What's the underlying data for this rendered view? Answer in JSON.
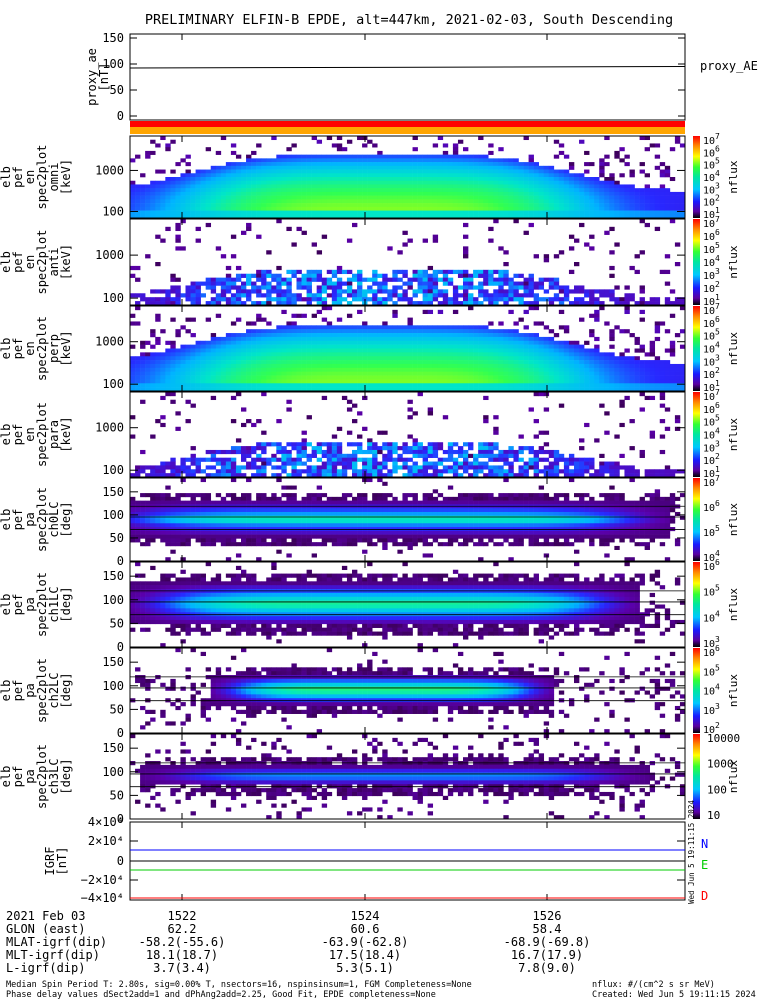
{
  "title": "PRELIMINARY ELFIN-B EPDE, alt=447km, 2021-02-03, South Descending",
  "chart_data": [
    {
      "type": "line",
      "panel": "proxy_ae",
      "ylabel_lines": [
        "proxy_ae",
        "[nT]"
      ],
      "yticks": [
        "150",
        "100",
        "50",
        "0"
      ],
      "ylim": [
        0,
        150
      ],
      "legend": "proxy_AE",
      "series": [
        {
          "name": "proxy_AE",
          "x_min": [
            0,
            5.75
          ],
          "values": [
            94,
            94.5
          ]
        }
      ],
      "colorbar": "orange/red bar"
    },
    {
      "type": "heatmap",
      "panel": "elb_pef_en_spec2plot_omni",
      "ylabel_lines": [
        "elb",
        "pef",
        "en",
        "spec2plot",
        "omni",
        "[keV]"
      ],
      "yticks": [
        "1000",
        "100"
      ],
      "scale": "log",
      "colorbar_label": "nflux",
      "colorbar_ticks": [
        "10^7",
        "10^6",
        "10^5",
        "10^4",
        "10^3",
        "10^2",
        "10^1"
      ],
      "intensity_peak": "green",
      "energy_range_keV": [
        60,
        7000
      ]
    },
    {
      "type": "heatmap",
      "panel": "elb_pef_en_spec2plot_anti",
      "ylabel_lines": [
        "elb",
        "pef",
        "en",
        "spec2plot",
        "anti",
        "[keV]"
      ],
      "yticks": [
        "1000",
        "100"
      ],
      "colorbar_label": "nflux",
      "colorbar_ticks": [
        "10^7",
        "10^6",
        "10^5",
        "10^4",
        "10^3",
        "10^2",
        "10^1"
      ]
    },
    {
      "type": "heatmap",
      "panel": "elb_pef_en_spec2plot_perp",
      "ylabel_lines": [
        "elb",
        "pef",
        "en",
        "spec2plot",
        "perp",
        "[keV]"
      ],
      "yticks": [
        "1000",
        "100"
      ],
      "colorbar_label": "nflux",
      "colorbar_ticks": [
        "10^7",
        "10^6",
        "10^5",
        "10^4",
        "10^3",
        "10^2",
        "10^1"
      ]
    },
    {
      "type": "heatmap",
      "panel": "elb_pef_en_spec2plot_para",
      "ylabel_lines": [
        "elb",
        "pef",
        "en",
        "spec2plot",
        "para",
        "[keV]"
      ],
      "yticks": [
        "1000",
        "100"
      ],
      "colorbar_label": "nflux",
      "colorbar_ticks": [
        "10^7",
        "10^6",
        "10^5",
        "10^4",
        "10^3",
        "10^2",
        "10^1"
      ]
    },
    {
      "type": "heatmap",
      "panel": "elb_pef_pa_spec2plot_ch0LC",
      "ylabel_lines": [
        "elb",
        "pef",
        "pa",
        "spec2plot",
        "ch0LC",
        "[deg]"
      ],
      "yticks": [
        "150",
        "100",
        "50",
        "0"
      ],
      "ylim": [
        0,
        180
      ],
      "colorbar_label": "nflux",
      "colorbar_ticks": [
        "10^7",
        "10^6",
        "10^5",
        "10^4"
      ]
    },
    {
      "type": "heatmap",
      "panel": "elb_pef_pa_spec2plot_ch1LC",
      "ylabel_lines": [
        "elb",
        "pef",
        "pa",
        "spec2plot",
        "ch1LC",
        "[deg]"
      ],
      "yticks": [
        "150",
        "100",
        "50",
        "0"
      ],
      "ylim": [
        0,
        180
      ],
      "colorbar_label": "nflux",
      "colorbar_ticks": [
        "10^6",
        "10^5",
        "10^4",
        "10^3"
      ]
    },
    {
      "type": "heatmap",
      "panel": "elb_pef_pa_spec2plot_ch2LC",
      "ylabel_lines": [
        "elb",
        "pef",
        "pa",
        "spec2plot",
        "ch2LC",
        "[deg]"
      ],
      "yticks": [
        "150",
        "100",
        "50",
        "0"
      ],
      "ylim": [
        0,
        180
      ],
      "colorbar_label": "nflux",
      "colorbar_ticks": [
        "10^6",
        "10^5",
        "10^4",
        "10^3",
        "10^2"
      ]
    },
    {
      "type": "heatmap",
      "panel": "elb_pef_pa_spec2plot_ch3LC",
      "ylabel_lines": [
        "elb",
        "pef",
        "pa",
        "spec2plot",
        "ch3LC",
        "[deg]"
      ],
      "yticks": [
        "150",
        "100",
        "50",
        "0"
      ],
      "ylim": [
        0,
        180
      ],
      "colorbar_label": "nflux",
      "colorbar_ticks": [
        "10000",
        "1000",
        "100",
        "10"
      ]
    },
    {
      "type": "line",
      "panel": "igrf",
      "ylabel_lines": [
        "IGRF",
        "[nT]"
      ],
      "yticks": [
        "4×10⁴",
        "2×10⁴",
        "0",
        "−2×10⁴",
        "−4×10⁴"
      ],
      "ylim": [
        -40000,
        40000
      ],
      "series": [
        {
          "name": "N",
          "color": "#0000ff",
          "value": 11500
        },
        {
          "name": "E",
          "color": "#00cc00",
          "value": -9000
        },
        {
          "name": "D",
          "color": "#ff0000",
          "value": -38500
        }
      ]
    }
  ],
  "xaxis": {
    "ticks": [
      "1522",
      "1524",
      "1526"
    ],
    "rows": [
      {
        "label": "2021 Feb 03",
        "values": [
          "1522",
          "1524",
          "1526"
        ]
      },
      {
        "label": "GLON (east)",
        "values": [
          "62.2",
          "60.6",
          "58.4"
        ]
      },
      {
        "label": "MLAT-igrf(dip)",
        "values": [
          "-58.2(-55.6)",
          "-63.9(-62.8)",
          "-68.9(-69.8)"
        ]
      },
      {
        "label": "MLT-igrf(dip)",
        "values": [
          "18.1(18.7)",
          "17.5(18.4)",
          "16.7(17.9)"
        ]
      },
      {
        "label": "L-igrf(dip)",
        "values": [
          "3.7(3.4)",
          "5.3(5.1)",
          "7.8(9.0)"
        ]
      }
    ]
  },
  "footer": {
    "line1": "Median Spin Period T: 2.80s, sig=0.00% T, nsectors=16, nspinsinsum=1, FGM Completeness=None",
    "line2": "Phase delay values dSect2add=1 and dPhAng2add=2.25, Good Fit, EPDE completeness=None",
    "right1": "nflux: #/(cm^2 s sr MeV)",
    "right2": "Created: Wed Jun  5 19:11:15 2024"
  },
  "timestamp_vertical": "Wed Jun  5 19:11:15 2024"
}
